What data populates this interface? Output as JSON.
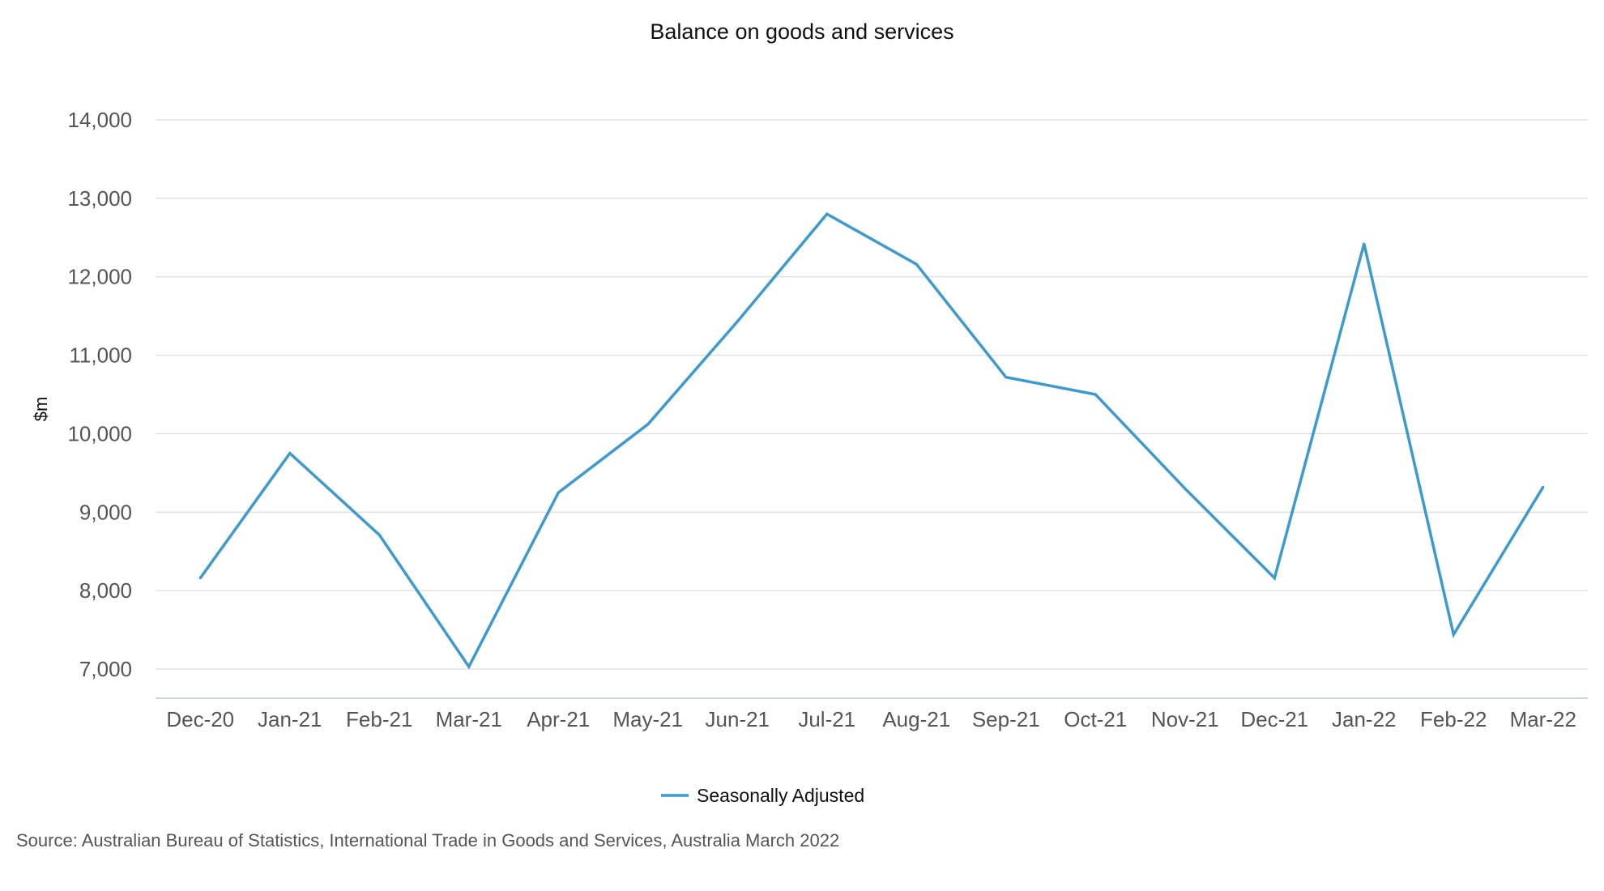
{
  "chart_data": {
    "type": "line",
    "title": "Balance on goods and services",
    "xlabel": "",
    "ylabel": "$m",
    "categories": [
      "Dec-20",
      "Jan-21",
      "Feb-21",
      "Mar-21",
      "Apr-21",
      "May-21",
      "Jun-21",
      "Jul-21",
      "Aug-21",
      "Sep-21",
      "Oct-21",
      "Nov-21",
      "Dec-21",
      "Jan-22",
      "Feb-22",
      "Mar-22"
    ],
    "series": [
      {
        "name": "Seasonally Adjusted",
        "values": [
          8160,
          9750,
          8710,
          7030,
          9250,
          10120,
          11430,
          12800,
          12160,
          10720,
          10500,
          9300,
          8160,
          12420,
          7440,
          9320
        ]
      }
    ],
    "ylim": [
      7000,
      14000
    ],
    "yticks": [
      "7,000",
      "8,000",
      "9,000",
      "10,000",
      "11,000",
      "12,000",
      "13,000",
      "14,000"
    ],
    "grid": true,
    "legend_position": "bottom-center",
    "line_color": "#3d9ad1"
  },
  "source_text": "Source: Australian Bureau of Statistics, International Trade in Goods and Services, Australia March 2022"
}
